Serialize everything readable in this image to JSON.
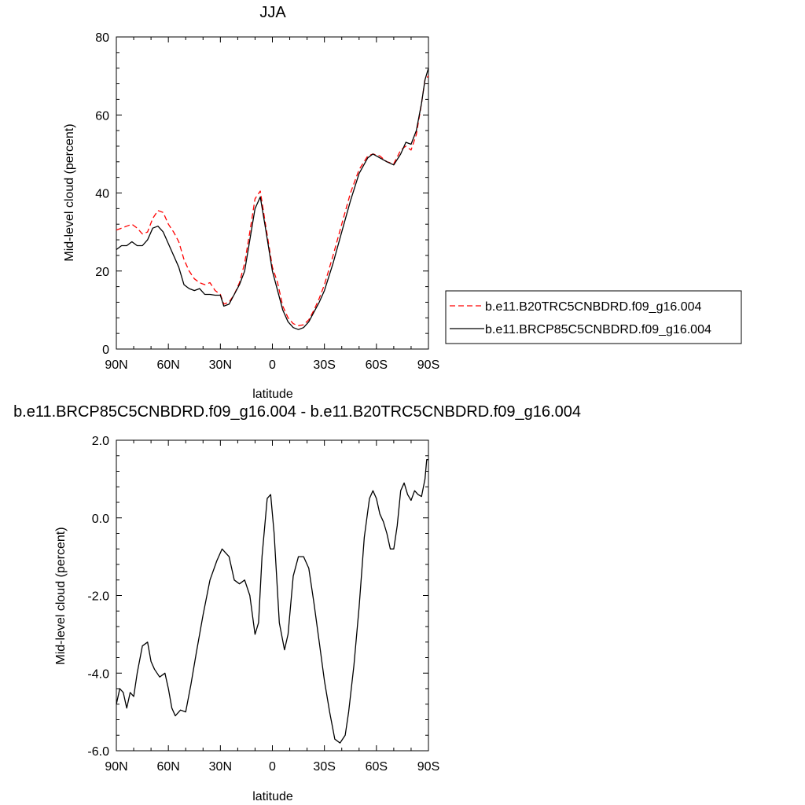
{
  "chart_data": [
    {
      "type": "line",
      "title": "JJA",
      "xlabel": "latitude",
      "ylabel": "Mid-level cloud (percent)",
      "xlim": [
        90,
        -90
      ],
      "ylim": [
        0,
        80
      ],
      "x_ticks": [
        "90N",
        "60N",
        "30N",
        "0",
        "30S",
        "60S",
        "90S"
      ],
      "y_ticks": [
        "0",
        "20",
        "40",
        "60",
        "80"
      ],
      "grid": false,
      "legend": "right",
      "x": [
        90,
        87,
        84,
        81,
        78,
        75,
        72,
        69,
        66,
        63,
        60,
        57,
        54,
        51,
        48,
        45,
        42,
        39,
        36,
        33,
        30,
        28,
        25,
        22,
        19,
        16,
        13,
        10,
        7,
        4,
        0,
        -3,
        -6,
        -9,
        -12,
        -15,
        -18,
        -21,
        -24,
        -27,
        -30,
        -35,
        -40,
        -45,
        -50,
        -55,
        -58,
        -62,
        -66,
        -70,
        -74,
        -77,
        -80,
        -83,
        -86,
        -88,
        -90
      ],
      "series": [
        {
          "name": "b.e11.B20TRC5CNBDRD.f09_g16.004",
          "color": "#ff0000",
          "dash": "dashed",
          "values": [
            30.5,
            31,
            31.5,
            32,
            31,
            29.5,
            30,
            33.5,
            35.5,
            35,
            32,
            30,
            27.5,
            23,
            20,
            18,
            17,
            16.5,
            17,
            15,
            14,
            11.5,
            12,
            14,
            17,
            22,
            30,
            38.5,
            40.5,
            32,
            21,
            17,
            11,
            8,
            6.5,
            6,
            6.2,
            7.5,
            10,
            13,
            16.5,
            24,
            32,
            40,
            46,
            49.5,
            50,
            49.5,
            48,
            47.5,
            51,
            52,
            51,
            55,
            63,
            69,
            70
          ]
        },
        {
          "name": "b.e11.BRCP85C5CNBDRD.f09_g16.004",
          "color": "#000000",
          "dash": "solid",
          "values": [
            25.5,
            26.5,
            26.5,
            27.5,
            26.5,
            26.5,
            28,
            31,
            31.5,
            30,
            27,
            24,
            21,
            16.5,
            15.5,
            15,
            15.5,
            14,
            14,
            13.8,
            13.8,
            11,
            11.5,
            14,
            16.5,
            20,
            28,
            36,
            39,
            31,
            20,
            15,
            10,
            7,
            5.5,
            5,
            5.5,
            7,
            9.5,
            12,
            15,
            22,
            30,
            38,
            45,
            49,
            50,
            49,
            48,
            47.2,
            50,
            53,
            52.5,
            56,
            63,
            69,
            72
          ]
        }
      ]
    },
    {
      "type": "line",
      "title": "b.e11.BRCP85C5CNBDRD.f09_g16.004 - b.e11.B20TRC5CNBDRD.f09_g16.004",
      "xlabel": "latitude",
      "ylabel": "Mid-level cloud (percent)",
      "xlim": [
        90,
        -90
      ],
      "ylim": [
        -6,
        2
      ],
      "x_ticks": [
        "90N",
        "60N",
        "30N",
        "0",
        "30S",
        "60S",
        "90S"
      ],
      "y_ticks": [
        "-6.0",
        "-4.0",
        "-2.0",
        "0.0",
        "2.0"
      ],
      "grid": false,
      "legend": "none",
      "x": [
        90,
        88,
        86,
        84,
        82,
        80,
        78,
        75,
        72,
        70,
        68,
        65,
        62,
        60,
        58,
        56,
        53,
        50,
        47,
        44,
        40,
        36,
        32,
        29,
        27,
        25,
        22,
        19,
        16,
        13,
        10,
        8,
        6,
        3,
        1,
        -1,
        -4,
        -7,
        -9,
        -12,
        -15,
        -18,
        -21,
        -24,
        -27,
        -30,
        -33,
        -36,
        -39,
        -42,
        -44,
        -47,
        -50,
        -53,
        -56,
        -58,
        -60,
        -62,
        -64,
        -66,
        -68,
        -70,
        -72,
        -74,
        -76,
        -78,
        -80,
        -82,
        -84,
        -86,
        -88,
        -89,
        -90
      ],
      "series": [
        {
          "name": "",
          "color": "#000000",
          "dash": "solid",
          "values": [
            -4.8,
            -4.4,
            -4.5,
            -4.9,
            -4.5,
            -4.6,
            -4.0,
            -3.3,
            -3.2,
            -3.7,
            -3.9,
            -4.1,
            -4.0,
            -4.4,
            -4.9,
            -5.1,
            -4.95,
            -5.0,
            -4.3,
            -3.5,
            -2.5,
            -1.6,
            -1.1,
            -0.8,
            -0.9,
            -1.0,
            -1.6,
            -1.7,
            -1.6,
            -2.0,
            -3.0,
            -2.7,
            -1.0,
            0.5,
            0.6,
            -0.4,
            -2.7,
            -3.4,
            -3.0,
            -1.5,
            -1.0,
            -1.0,
            -1.3,
            -2.2,
            -3.2,
            -4.2,
            -5.0,
            -5.7,
            -5.8,
            -5.6,
            -5.0,
            -3.8,
            -2.3,
            -0.5,
            0.5,
            0.7,
            0.5,
            0.1,
            -0.1,
            -0.4,
            -0.8,
            -0.8,
            -0.2,
            0.7,
            0.9,
            0.6,
            0.45,
            0.7,
            0.6,
            0.55,
            1.0,
            1.5,
            1.5
          ]
        }
      ]
    }
  ]
}
